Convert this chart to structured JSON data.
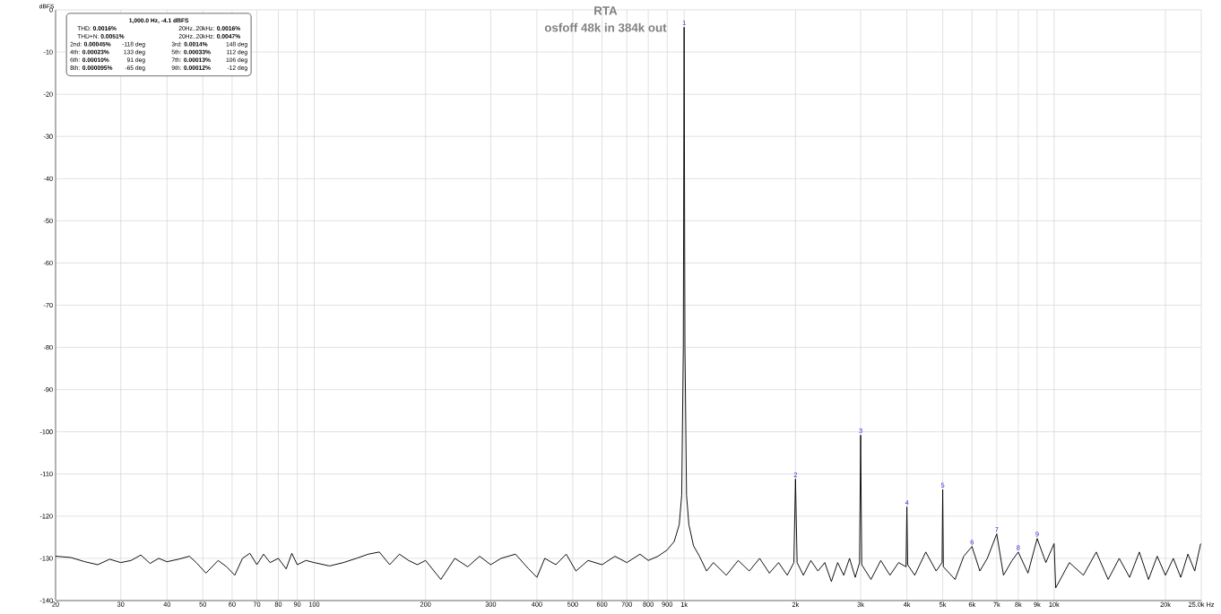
{
  "chart_data": {
    "type": "line",
    "title": "RTA",
    "subtitle": "osfoff 48k in 384k out",
    "ylabel": "dBFS",
    "log": "x",
    "grid": true,
    "xlim": [
      20,
      25000
    ],
    "ylim": [
      -140,
      0
    ],
    "xticks": [
      20,
      30,
      40,
      50,
      60,
      70,
      80,
      90,
      100,
      200,
      300,
      400,
      500,
      600,
      700,
      800,
      900,
      {
        "value": 1000,
        "label": "1k"
      },
      {
        "value": 2000,
        "label": "2k"
      },
      {
        "value": 3000,
        "label": "3k"
      },
      {
        "value": 4000,
        "label": "4k"
      },
      {
        "value": 5000,
        "label": "5k"
      },
      {
        "value": 6000,
        "label": "6k"
      },
      {
        "value": 7000,
        "label": "7k"
      },
      {
        "value": 8000,
        "label": "8k"
      },
      {
        "value": 9000,
        "label": "9k"
      },
      {
        "value": 10000,
        "label": "10k"
      },
      {
        "value": 20000,
        "label": "20k"
      },
      {
        "value": 25000,
        "label": "25.0k Hz"
      }
    ],
    "yticks": [
      0,
      -10,
      -20,
      -30,
      -40,
      -50,
      -60,
      -70,
      -80,
      -90,
      -100,
      -110,
      -120,
      -130,
      -140
    ],
    "series": [
      {
        "color": "#000000",
        "x": [
          20,
          22,
          24,
          26,
          28,
          30,
          32,
          34,
          36,
          38,
          40,
          43,
          46,
          48,
          51,
          55,
          58,
          61,
          64,
          67,
          70,
          73,
          76,
          80,
          84,
          87,
          90,
          95,
          100,
          110,
          120,
          130,
          140,
          150,
          160,
          170,
          180,
          190,
          200,
          220,
          240,
          260,
          280,
          300,
          320,
          350,
          380,
          400,
          420,
          450,
          480,
          510,
          550,
          600,
          650,
          700,
          760,
          800,
          850,
          900,
          940,
          970,
          985,
          995,
          1000,
          1005,
          1015,
          1030,
          1060,
          1100,
          1150,
          1200,
          1300,
          1400,
          1500,
          1600,
          1700,
          1800,
          1900,
          1980,
          2000,
          2020,
          2100,
          2200,
          2300,
          2400,
          2500,
          2600,
          2700,
          2800,
          2900,
          2980,
          3000,
          3020,
          3200,
          3400,
          3600,
          3800,
          3980,
          4000,
          4020,
          4200,
          4500,
          4800,
          4980,
          5000,
          5020,
          5400,
          5700,
          6000,
          6300,
          6600,
          7000,
          7300,
          7700,
          8000,
          8500,
          9000,
          9500,
          10000,
          10100,
          11000,
          12000,
          13000,
          14000,
          15000,
          16000,
          17000,
          18000,
          19000,
          20000,
          21000,
          22000,
          23000,
          24000,
          24900
        ],
        "values": [
          -129.5,
          -129.8,
          -130.8,
          -131.5,
          -130.2,
          -131.0,
          -130.5,
          -129.2,
          -131.2,
          -130.0,
          -130.8,
          -130.2,
          -129.5,
          -131.0,
          -133.5,
          -130.5,
          -132.0,
          -134.0,
          -130.0,
          -128.8,
          -131.5,
          -129.0,
          -131.0,
          -130.0,
          -132.5,
          -128.8,
          -131.5,
          -130.5,
          -131.0,
          -131.8,
          -131.0,
          -130.0,
          -129.0,
          -128.5,
          -131.5,
          -129.0,
          -130.5,
          -131.5,
          -130.5,
          -135.0,
          -130.0,
          -132.0,
          -129.5,
          -131.5,
          -130.0,
          -129.0,
          -132.5,
          -134.5,
          -130.0,
          -131.5,
          -129.0,
          -133.0,
          -130.5,
          -131.5,
          -129.5,
          -131.0,
          -129.0,
          -130.5,
          -129.5,
          -128.0,
          -126.0,
          -122.0,
          -115.0,
          -80.0,
          -4.1,
          -80.0,
          -115.0,
          -122.0,
          -127.0,
          -129.5,
          -133.0,
          -131.0,
          -134.0,
          -130.5,
          -133.0,
          -130.0,
          -133.5,
          -131.0,
          -134.0,
          -131.0,
          -111.2,
          -131.0,
          -134.0,
          -130.5,
          -133.0,
          -131.0,
          -135.5,
          -131.0,
          -134.0,
          -130.0,
          -134.5,
          -131.0,
          -100.8,
          -131.5,
          -135.0,
          -130.5,
          -134.0,
          -131.0,
          -132.0,
          -117.8,
          -131.5,
          -134.0,
          -128.5,
          -133.0,
          -131.0,
          -113.7,
          -132.0,
          -135.0,
          -129.5,
          -127.2,
          -133.0,
          -130.0,
          -124.2,
          -134.0,
          -130.5,
          -128.5,
          -133.5,
          -125.3,
          -131.0,
          -126.5,
          -137.0,
          -131.0,
          -134.0,
          -128.5,
          -135.0,
          -130.0,
          -134.5,
          -128.5,
          -135.0,
          -129.5,
          -134.0,
          -130.0,
          -134.5,
          -129.0,
          -133.0,
          -126.5
        ]
      }
    ],
    "annotations": [
      "1,000.0 Hz, -4.1 dBFS",
      "THD: **0.0016%**",
      "20Hz..20kHz: **0.0016%**",
      "THD+N: **0.0051%**",
      "20Hz..20kHz: **0.0047%**",
      "2nd: **0.00045%**",
      "-118 deg",
      "3rd: **0.0014%**",
      "148 deg",
      "4th: **0.00023%**",
      "133 deg",
      "5th: **0.00033%**",
      "112 deg",
      "6th: **0.00010%**",
      "91 deg",
      "7th: **0.00013%**",
      "106 deg",
      "8th: **0.000095%**",
      "-65 deg",
      "9th: **0.00012%**",
      "-12 deg",
      {
        "text": "1",
        "x": 1000,
        "y": -4.1
      },
      {
        "text": "2",
        "x": 2000,
        "y": -111.2
      },
      {
        "text": "3",
        "x": 3000,
        "y": -100.8
      },
      {
        "text": "4",
        "x": 4000,
        "y": -117.8
      },
      {
        "text": "5",
        "x": 5000,
        "y": -113.7
      },
      {
        "text": "6",
        "x": 6000,
        "y": -127.2
      },
      {
        "text": "7",
        "x": 7000,
        "y": -124.2
      },
      {
        "text": "8",
        "x": 8000,
        "y": -128.5
      },
      {
        "text": "9",
        "x": 9000,
        "y": -125.3
      }
    ]
  }
}
